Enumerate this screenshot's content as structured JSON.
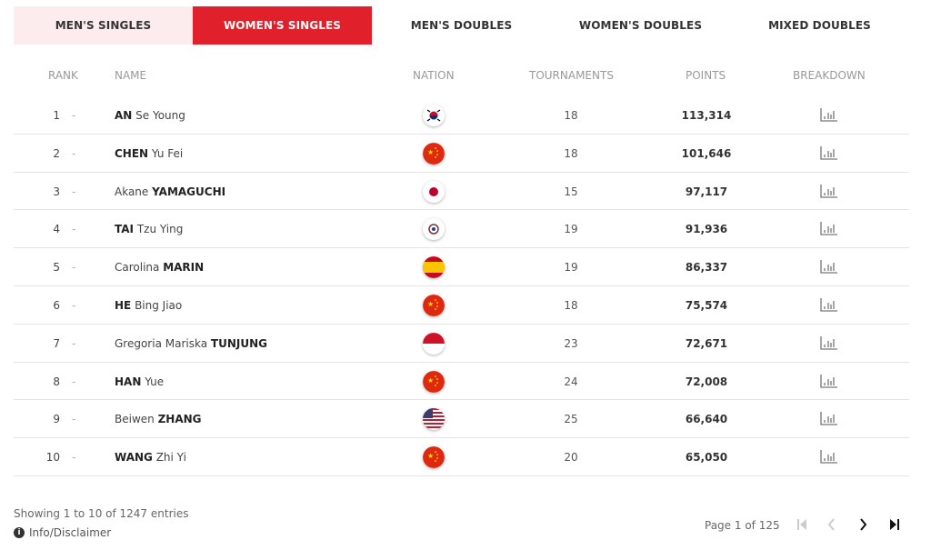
{
  "tabs": [
    {
      "label": "MEN'S SINGLES"
    },
    {
      "label": "WOMEN'S SINGLES",
      "active": true
    },
    {
      "label": "MEN'S DOUBLES"
    },
    {
      "label": "WOMEN'S DOUBLES"
    },
    {
      "label": "MIXED DOUBLES"
    }
  ],
  "accent": "#e0202a",
  "columns": {
    "rank": "RANK",
    "name": "NAME",
    "nation": "NATION",
    "tournaments": "TOURNAMENTS",
    "points": "POINTS",
    "breakdown": "BREAKDOWN"
  },
  "rows": [
    {
      "rank": "1",
      "change": "-",
      "pre": "",
      "bold": "AN",
      "post": " Se Young",
      "nation": "KOR",
      "tournaments": "18",
      "points": "113,314"
    },
    {
      "rank": "2",
      "change": "-",
      "pre": "",
      "bold": "CHEN",
      "post": " Yu Fei",
      "nation": "CHN",
      "tournaments": "18",
      "points": "101,646"
    },
    {
      "rank": "3",
      "change": "-",
      "pre": "Akane ",
      "bold": "YAMAGUCHI",
      "post": "",
      "nation": "JPN",
      "tournaments": "15",
      "points": "97,117"
    },
    {
      "rank": "4",
      "change": "-",
      "pre": "",
      "bold": "TAI",
      "post": " Tzu Ying",
      "nation": "TPE",
      "tournaments": "19",
      "points": "91,936"
    },
    {
      "rank": "5",
      "change": "-",
      "pre": "Carolina ",
      "bold": "MARIN",
      "post": "",
      "nation": "ESP",
      "tournaments": "19",
      "points": "86,337"
    },
    {
      "rank": "6",
      "change": "-",
      "pre": "",
      "bold": "HE",
      "post": " Bing Jiao",
      "nation": "CHN",
      "tournaments": "18",
      "points": "75,574"
    },
    {
      "rank": "7",
      "change": "-",
      "pre": "Gregoria Mariska ",
      "bold": "TUNJUNG",
      "post": "",
      "nation": "INA",
      "tournaments": "23",
      "points": "72,671"
    },
    {
      "rank": "8",
      "change": "-",
      "pre": "",
      "bold": "HAN",
      "post": " Yue",
      "nation": "CHN",
      "tournaments": "24",
      "points": "72,008"
    },
    {
      "rank": "9",
      "change": "-",
      "pre": "Beiwen ",
      "bold": "ZHANG",
      "post": "",
      "nation": "USA",
      "tournaments": "25",
      "points": "66,640"
    },
    {
      "rank": "10",
      "change": "-",
      "pre": "",
      "bold": "WANG",
      "post": " Zhi Yi",
      "nation": "CHN",
      "tournaments": "20",
      "points": "65,050"
    }
  ],
  "footer": {
    "showing": "Showing 1 to 10 of 1247 entries",
    "info": "Info/Disclaimer",
    "page": "Page 1 of 125"
  }
}
